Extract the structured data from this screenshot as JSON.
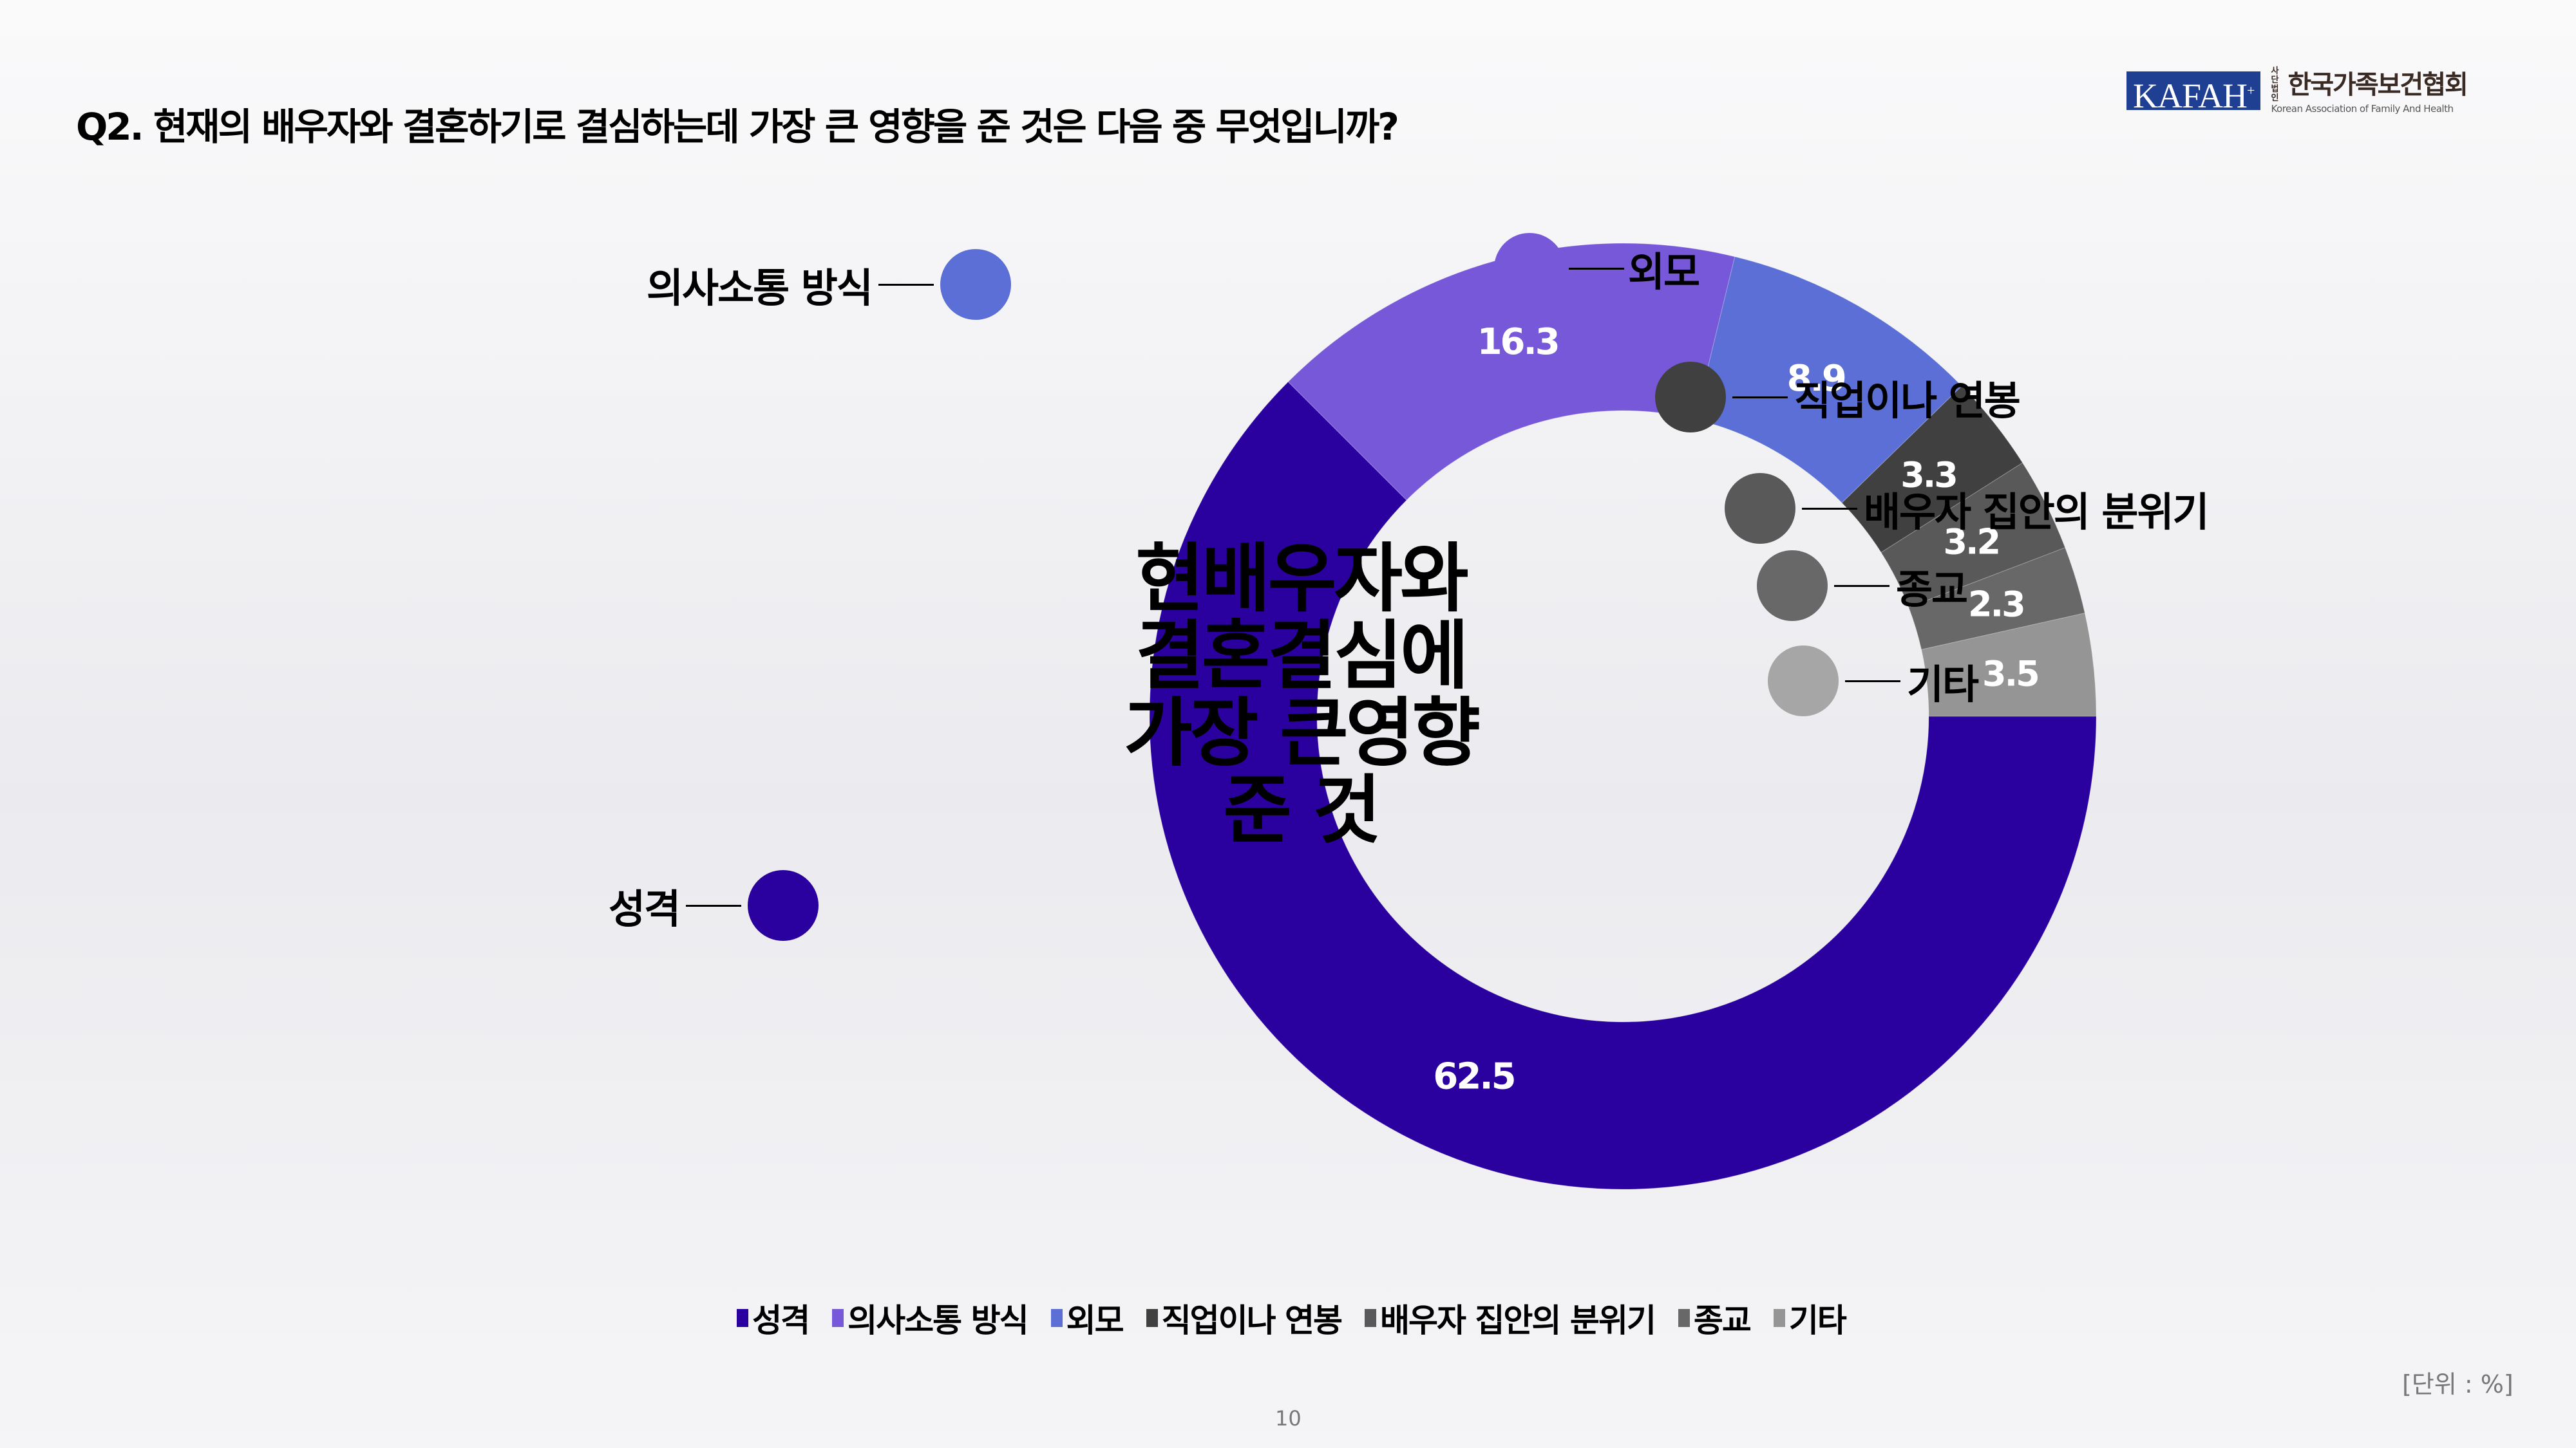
{
  "header": {
    "title": "Q2. 현재의 배우자와 결혼하기로 결심하는데 가장 큰 영향을 준 것은 다음 중 무엇입니까?"
  },
  "logo": {
    "mark": "KAFAH",
    "mark_sup": "+",
    "small_top": "사단",
    "small_bottom": "법인",
    "name_ko": "한국가족보건협회",
    "name_en": "Korean Association of Family And Health"
  },
  "center_label": {
    "line1": "현배우자와",
    "line2": "결혼결심에",
    "line3": "가장 큰영향",
    "line4": "준 것"
  },
  "chart_data": {
    "type": "pie",
    "subtype": "donut",
    "title": "Q2. 현재의 배우자와 결혼하기로 결심하는데 가장 큰 영향을 준 것은 다음 중 무엇입니까?",
    "center_text": "현배우자와 결혼결심에 가장 큰영향 준 것",
    "unit": "%",
    "categories": [
      "성격",
      "의사소통 방식",
      "외모",
      "직업이나 연봉",
      "배우자 집안의 분위기",
      "종교",
      "기타"
    ],
    "values": [
      62.5,
      16.3,
      8.9,
      3.3,
      3.2,
      2.3,
      3.5
    ],
    "colors": [
      "#2a009f",
      "#7658d8",
      "#5b6fd6",
      "#404040",
      "#595959",
      "#686868",
      "#959595"
    ],
    "data_labels": [
      "62.5",
      "16.3",
      "8.9",
      "3.3",
      "3.2",
      "2.3",
      "3.5"
    ],
    "legend_position": "bottom",
    "start_angle": "3 o'clock, clockwise"
  },
  "callouts": [
    {
      "label": "의사소통 방식",
      "dot_color": "#5b6fd6"
    },
    {
      "label": "외모",
      "dot_color": "#7658d8"
    },
    {
      "label": "직업이나 연봉",
      "dot_color": "#404040"
    },
    {
      "label": "배우자 집안의 분위기",
      "dot_color": "#595959"
    },
    {
      "label": "종교",
      "dot_color": "#686868"
    },
    {
      "label": "기타",
      "dot_color": "#a6a6a6"
    },
    {
      "label": "성격",
      "dot_color": "#2a009f"
    }
  ],
  "legend": [
    {
      "label": "성격",
      "color": "#2a009f"
    },
    {
      "label": "의사소통 방식",
      "color": "#7658d8"
    },
    {
      "label": "외모",
      "color": "#5b6fd6"
    },
    {
      "label": "직업이나 연봉",
      "color": "#404040"
    },
    {
      "label": "배우자 집안의 분위기",
      "color": "#595959"
    },
    {
      "label": "종교",
      "color": "#686868"
    },
    {
      "label": "기타",
      "color": "#959595"
    }
  ],
  "footer": {
    "unit": "[단위 : %]",
    "page_number": "10"
  }
}
